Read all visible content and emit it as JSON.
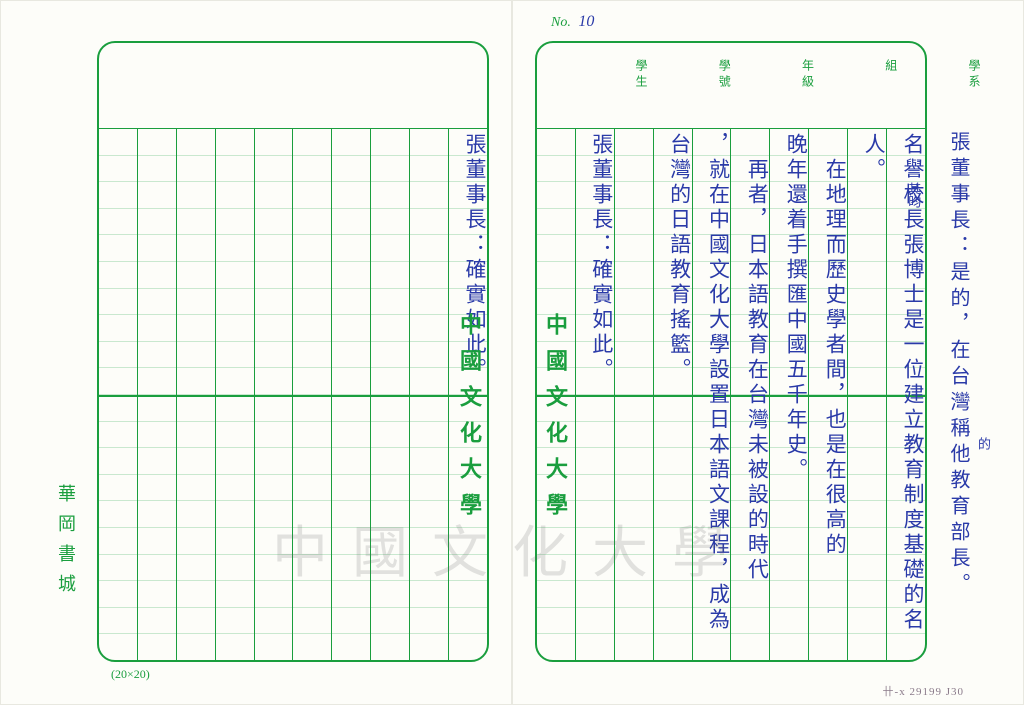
{
  "page_number_label": "No.",
  "page_number_value": "10",
  "grid_dimensions_label": "(20×20)",
  "university_name": "中國文化大學",
  "publisher": "華岡書城",
  "header_labels": [
    "學系",
    "組",
    "年級",
    "學號",
    "學生"
  ],
  "watermark_text": "中國文化大學",
  "reference_code": "卄-x 29199 J30",
  "colors": {
    "grid_green": "#1a9e3e",
    "grid_light": "#c9e8cf",
    "ink_blue": "#2a3aa8",
    "paper": "#fdfdf9",
    "background": "#f5f5f2",
    "watermark": "rgba(100,100,100,0.18)"
  },
  "grid": {
    "cols": 10,
    "rows": 20
  },
  "right_page_margin_text": "張董事長：是的，在台灣稱他教育部長。",
  "right_page_columns": [
    "名譽校長張博士是一位建立教育制度基礎的名",
    "人。",
    "　在地理而歷史學者間，也是在很高的",
    "晚年還着手撰匯中國五千年史。",
    "　再者，日本語教育在台灣未被設的時代",
    "，就在中國文化大學設置日本語文課程，成為",
    "台灣的日語教育搖籃。",
    "",
    "張董事長：確實如此。"
  ],
  "right_page_insertions": [
    {
      "text": "其昀",
      "near_col": 0,
      "top_pct": 10
    },
    {
      "text": "的",
      "near_margin": true,
      "top_pct": 62
    }
  ],
  "left_page_columns": [
    "張董事長：確實如此。"
  ]
}
